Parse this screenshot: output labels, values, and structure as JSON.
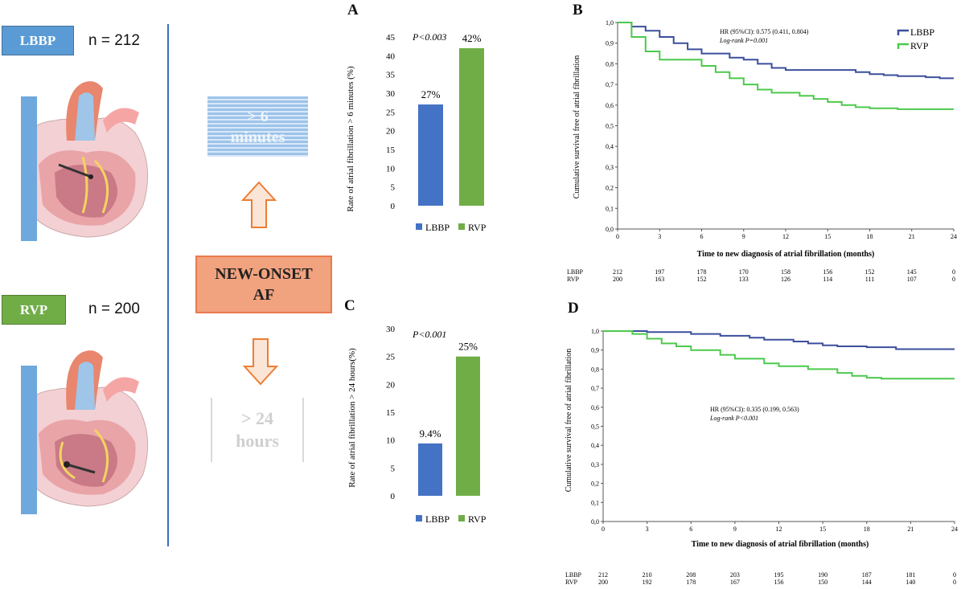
{
  "left": {
    "lbbp_label": "LBBP",
    "lbbp_n": "n = 212",
    "lbbp_color": "#5b9bd5",
    "rvp_label": "RVP",
    "rvp_n": "n = 200",
    "rvp_color": "#70ad47"
  },
  "middle": {
    "six_min_line1": "> 6",
    "six_min_line2": "minutes",
    "onset_line1": "NEW-ONSET",
    "onset_line2": "AF",
    "hours_line1": "> 24",
    "hours_line2": "hours",
    "arrow_color": "#f4b183"
  },
  "colors": {
    "lbbp": "#4472c4",
    "rvp": "#70ad47",
    "km_lbbp": "#3b4f9c",
    "km_rvp": "#4cc94c"
  },
  "chart_data": [
    {
      "panel": "A",
      "type": "bar",
      "categories": [
        "LBBP",
        "RVP"
      ],
      "values": [
        27,
        42
      ],
      "value_labels": [
        "27%",
        "42%"
      ],
      "ylabel": "Rate of atrial fibrillation > 6 minutes (%)",
      "ylim": [
        0,
        45
      ],
      "yticks": [
        0,
        5,
        10,
        15,
        20,
        25,
        30,
        35,
        40,
        45
      ],
      "p_value": "P<0.003",
      "legend": [
        "LBBP",
        "RVP"
      ]
    },
    {
      "panel": "B",
      "type": "line",
      "xlabel": "Time to new diagnosis of atrial fibrillation (months)",
      "ylabel": "Cumulative survival free of atrial fibrillation",
      "xlim": [
        0,
        24
      ],
      "xticks": [
        0,
        3,
        6,
        9,
        12,
        15,
        18,
        21,
        24
      ],
      "ylim": [
        0,
        1
      ],
      "yticks": [
        "0,0",
        "0,1",
        "0,2",
        "0,3",
        "0,4",
        "0,5",
        "0,6",
        "0,7",
        "0,8",
        "0,9",
        "1,0"
      ],
      "hr_text": "HR (95%CI): 0.575 (0.411, 0.804)",
      "logrank": "Log-rank P=0.001",
      "legend": [
        "LBBP",
        "RVP"
      ],
      "series": [
        {
          "name": "LBBP",
          "points": [
            [
              0,
              1
            ],
            [
              1,
              1
            ],
            [
              1,
              0.98
            ],
            [
              2,
              0.98
            ],
            [
              2,
              0.96
            ],
            [
              3,
              0.96
            ],
            [
              3,
              0.93
            ],
            [
              4,
              0.93
            ],
            [
              4,
              0.9
            ],
            [
              5,
              0.9
            ],
            [
              5,
              0.87
            ],
            [
              6,
              0.87
            ],
            [
              6,
              0.85
            ],
            [
              8,
              0.85
            ],
            [
              8,
              0.83
            ],
            [
              9,
              0.83
            ],
            [
              9,
              0.82
            ],
            [
              10,
              0.82
            ],
            [
              10,
              0.8
            ],
            [
              11,
              0.8
            ],
            [
              11,
              0.78
            ],
            [
              12,
              0.78
            ],
            [
              12,
              0.77
            ],
            [
              17,
              0.77
            ],
            [
              17,
              0.76
            ],
            [
              18,
              0.76
            ],
            [
              18,
              0.75
            ],
            [
              19,
              0.75
            ],
            [
              19,
              0.745
            ],
            [
              20,
              0.745
            ],
            [
              20,
              0.74
            ],
            [
              22,
              0.74
            ],
            [
              22,
              0.735
            ],
            [
              23,
              0.735
            ],
            [
              23,
              0.73
            ],
            [
              24,
              0.73
            ]
          ]
        },
        {
          "name": "RVP",
          "points": [
            [
              0,
              1
            ],
            [
              1,
              1
            ],
            [
              1,
              0.93
            ],
            [
              2,
              0.93
            ],
            [
              2,
              0.86
            ],
            [
              3,
              0.86
            ],
            [
              3,
              0.82
            ],
            [
              6,
              0.82
            ],
            [
              6,
              0.79
            ],
            [
              7,
              0.79
            ],
            [
              7,
              0.76
            ],
            [
              8,
              0.76
            ],
            [
              8,
              0.73
            ],
            [
              9,
              0.73
            ],
            [
              9,
              0.7
            ],
            [
              10,
              0.7
            ],
            [
              10,
              0.675
            ],
            [
              11,
              0.675
            ],
            [
              11,
              0.66
            ],
            [
              13,
              0.66
            ],
            [
              13,
              0.645
            ],
            [
              14,
              0.645
            ],
            [
              14,
              0.63
            ],
            [
              15,
              0.63
            ],
            [
              15,
              0.615
            ],
            [
              16,
              0.615
            ],
            [
              16,
              0.6
            ],
            [
              17,
              0.6
            ],
            [
              17,
              0.59
            ],
            [
              18,
              0.59
            ],
            [
              18,
              0.585
            ],
            [
              20,
              0.585
            ],
            [
              20,
              0.58
            ],
            [
              24,
              0.58
            ]
          ]
        }
      ],
      "risk_table": {
        "rows": [
          {
            "name": "LBBP",
            "values": [
              "212",
              "197",
              "178",
              "170",
              "158",
              "156",
              "152",
              "145",
              "0"
            ]
          },
          {
            "name": "RVP",
            "values": [
              "200",
              "163",
              "152",
              "133",
              "126",
              "114",
              "111",
              "107",
              "0"
            ]
          }
        ]
      }
    },
    {
      "panel": "C",
      "type": "bar",
      "categories": [
        "LBBP",
        "RVP"
      ],
      "values": [
        9.4,
        25
      ],
      "value_labels": [
        "9.4%",
        "25%"
      ],
      "ylabel": "Rate of atrial fibrillation > 24 hours(%)",
      "ylim": [
        0,
        30
      ],
      "yticks": [
        0,
        5,
        10,
        15,
        20,
        25,
        30
      ],
      "p_value": "P<0.001",
      "legend": [
        "LBBP",
        "RVP"
      ]
    },
    {
      "panel": "D",
      "type": "line",
      "xlabel": "Time to new diagnosis of atrial fibrillation (months)",
      "ylabel": "Cumulative survival free of atrial fibrillation",
      "xlim": [
        0,
        24
      ],
      "xticks": [
        0,
        3,
        6,
        9,
        12,
        15,
        18,
        21,
        24
      ],
      "ylim": [
        0,
        1
      ],
      "yticks": [
        "0,0",
        "0,1",
        "0,2",
        "0,3",
        "0,4",
        "0,5",
        "0,6",
        "0,7",
        "0,8",
        "0,9",
        "1,0"
      ],
      "hr_text": "HR (95%CI): 0.335 (0.199, 0.563)",
      "logrank": "Log-rank P<0.001",
      "legend": [],
      "series": [
        {
          "name": "LBBP",
          "points": [
            [
              0,
              1
            ],
            [
              3,
              1
            ],
            [
              3,
              0.995
            ],
            [
              6,
              0.995
            ],
            [
              6,
              0.985
            ],
            [
              8,
              0.985
            ],
            [
              8,
              0.975
            ],
            [
              10,
              0.975
            ],
            [
              10,
              0.965
            ],
            [
              11,
              0.965
            ],
            [
              11,
              0.955
            ],
            [
              13,
              0.955
            ],
            [
              13,
              0.945
            ],
            [
              14,
              0.945
            ],
            [
              14,
              0.935
            ],
            [
              15,
              0.935
            ],
            [
              15,
              0.925
            ],
            [
              16,
              0.925
            ],
            [
              16,
              0.92
            ],
            [
              18,
              0.92
            ],
            [
              18,
              0.915
            ],
            [
              20,
              0.915
            ],
            [
              20,
              0.905
            ],
            [
              24,
              0.905
            ]
          ]
        },
        {
          "name": "RVP",
          "points": [
            [
              0,
              1
            ],
            [
              2,
              1
            ],
            [
              2,
              0.985
            ],
            [
              3,
              0.985
            ],
            [
              3,
              0.96
            ],
            [
              4,
              0.96
            ],
            [
              4,
              0.935
            ],
            [
              5,
              0.935
            ],
            [
              5,
              0.92
            ],
            [
              6,
              0.92
            ],
            [
              6,
              0.9
            ],
            [
              8,
              0.9
            ],
            [
              8,
              0.875
            ],
            [
              9,
              0.875
            ],
            [
              9,
              0.855
            ],
            [
              11,
              0.855
            ],
            [
              11,
              0.83
            ],
            [
              12,
              0.83
            ],
            [
              12,
              0.815
            ],
            [
              14,
              0.815
            ],
            [
              14,
              0.8
            ],
            [
              16,
              0.8
            ],
            [
              16,
              0.78
            ],
            [
              17,
              0.78
            ],
            [
              17,
              0.765
            ],
            [
              18,
              0.765
            ],
            [
              18,
              0.755
            ],
            [
              19,
              0.755
            ],
            [
              19,
              0.75
            ],
            [
              24,
              0.75
            ]
          ]
        }
      ],
      "risk_table": {
        "rows": [
          {
            "name": "LBBP",
            "values": [
              "212",
              "210",
              "208",
              "203",
              "195",
              "190",
              "187",
              "181",
              "0"
            ]
          },
          {
            "name": "RVP",
            "values": [
              "200",
              "192",
              "178",
              "167",
              "156",
              "150",
              "144",
              "140",
              "0"
            ]
          }
        ]
      }
    }
  ]
}
